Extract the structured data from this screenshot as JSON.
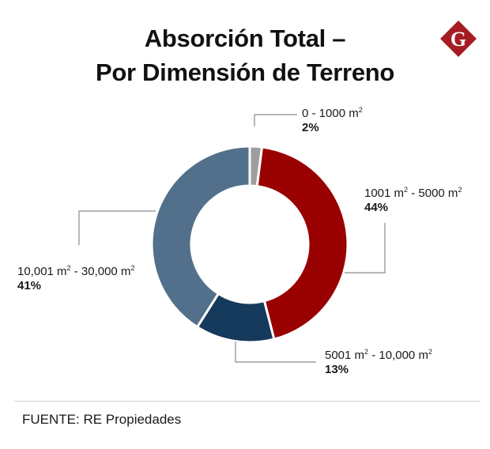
{
  "title_line1": "Absorción Total –",
  "title_line2": "Por Dimensión de Terreno",
  "logo_letter": "G",
  "source": "FUENTE: RE Propiedades",
  "colors": {
    "slice_0_1000": "#9e9e9e",
    "slice_1001_5000": "#990000",
    "slice_5001_10000": "#163a5c",
    "slice_10001_30000": "#52708b",
    "logo": "#a51c23",
    "leader": "#8a8a8a"
  },
  "chart_data": {
    "type": "pie",
    "variant": "donut",
    "title": "Absorción Total – Por Dimensión de Terreno",
    "slices": [
      {
        "name": "0 - 1000",
        "unit": "m2",
        "value": 2,
        "label": "2%",
        "color": "#9e9e9e"
      },
      {
        "name": "1001 m - 5000 m",
        "unit": "m2",
        "value": 44,
        "label": "44%",
        "color": "#990000"
      },
      {
        "name": "5001 m - 10,000 m",
        "unit": "m2",
        "value": 13,
        "label": "13%",
        "color": "#163a5c"
      },
      {
        "name": "10,001 m - 30,000 m",
        "unit": "m2",
        "value": 41,
        "label": "41%",
        "color": "#52708b"
      }
    ],
    "legend": "none"
  },
  "labels": {
    "s0": {
      "range_a": "0 - 1000 m",
      "range_b": "",
      "sup": "2",
      "pct": "2%"
    },
    "s1": {
      "range_a": "1001 m",
      "range_b": " - 5000 m",
      "sup": "2",
      "pct": "44%"
    },
    "s2": {
      "range_a": "5001 m",
      "range_b": " - 10,000 m",
      "sup": "2",
      "pct": "13%"
    },
    "s3": {
      "range_a": "10,001 m",
      "range_b": " - 30,000 m",
      "sup": "2",
      "pct": "41%"
    }
  }
}
